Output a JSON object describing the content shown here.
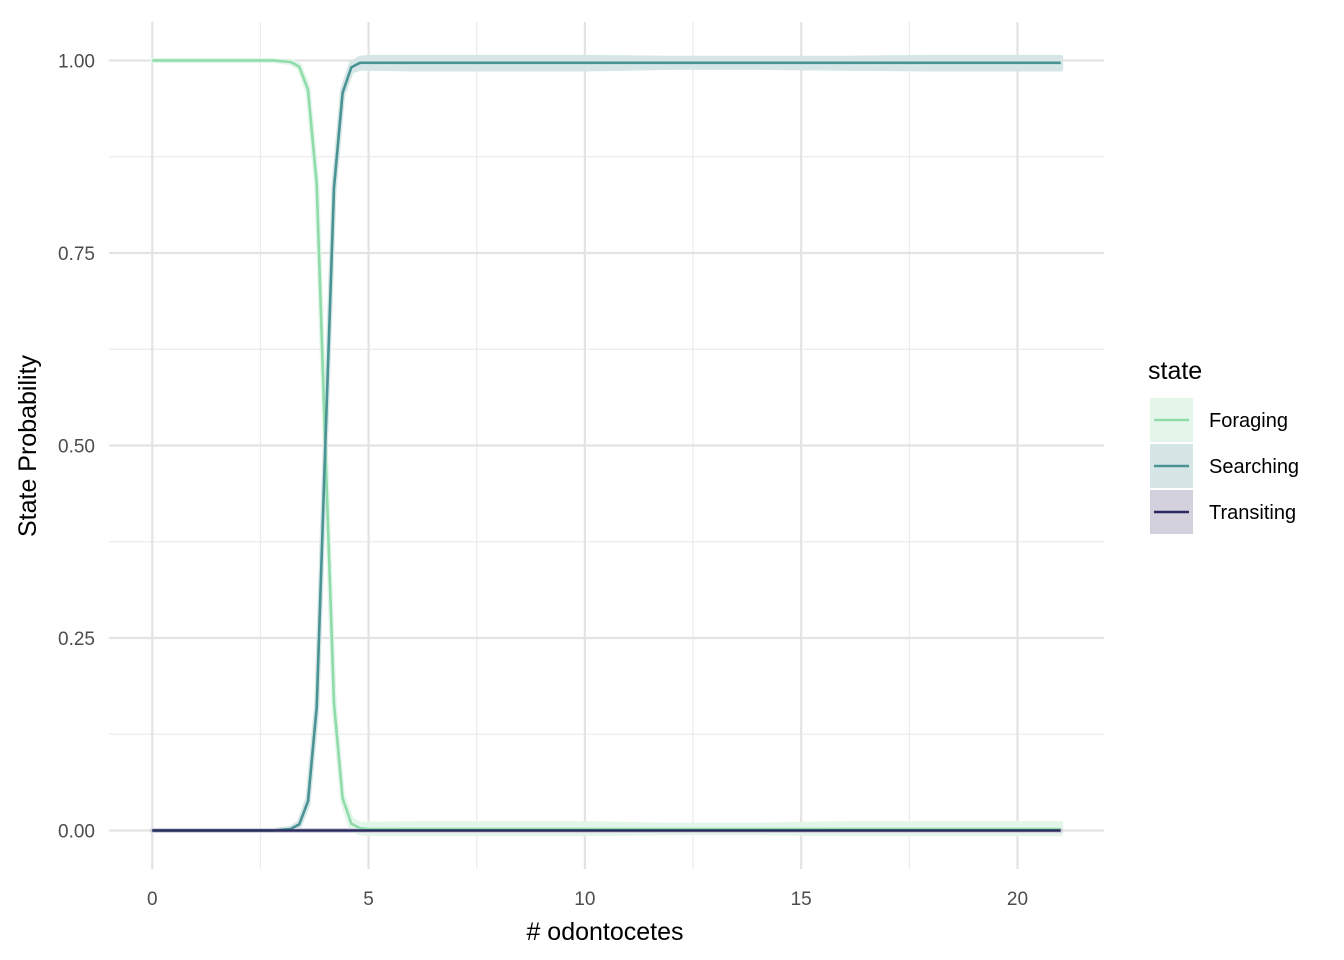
{
  "chart_data": {
    "type": "line",
    "xlabel": "# odontocetes",
    "ylabel": "State Probability",
    "xlim": [
      -1,
      22
    ],
    "ylim": [
      -0.05,
      1.05
    ],
    "x_ticks": [
      0,
      5,
      10,
      15,
      20
    ],
    "x_tick_labels": [
      "0",
      "5",
      "10",
      "15",
      "20"
    ],
    "y_ticks": [
      0,
      0.25,
      0.5,
      0.75,
      1
    ],
    "y_tick_labels": [
      "0.00",
      "0.25",
      "0.50",
      "0.75",
      "1.00"
    ],
    "grid": true,
    "legend": {
      "title": "state",
      "position": "right"
    },
    "series": [
      {
        "name": "Foraging",
        "color": "#8fdcaa",
        "ribbon_color": "#e4f6ea",
        "x": [
          0,
          1,
          2,
          2.8,
          3.2,
          3.4,
          3.6,
          3.8,
          4.0,
          4.2,
          4.4,
          4.6,
          4.8,
          5,
          6,
          8,
          10,
          12,
          14,
          16,
          18,
          21
        ],
        "values": [
          1.0,
          1.0,
          1.0,
          1.0,
          0.998,
          0.992,
          0.962,
          0.84,
          0.5,
          0.165,
          0.042,
          0.009,
          0.003,
          0.002,
          0.002,
          0.002,
          0.002,
          0.002,
          0.002,
          0.002,
          0.002,
          0.002
        ],
        "lower": [
          1.0,
          1.0,
          1.0,
          1.0,
          0.997,
          0.99,
          0.958,
          0.835,
          0.495,
          0.16,
          0.038,
          0.003,
          -0.003,
          -0.004,
          -0.004,
          -0.004,
          -0.004,
          -0.003,
          -0.003,
          -0.004,
          -0.004,
          -0.004
        ],
        "upper": [
          1.0,
          1.0,
          1.0,
          1.0,
          0.999,
          0.994,
          0.966,
          0.845,
          0.505,
          0.17,
          0.046,
          0.014,
          0.008,
          0.008,
          0.009,
          0.009,
          0.009,
          0.007,
          0.007,
          0.009,
          0.009,
          0.009
        ]
      },
      {
        "name": "Searching",
        "color": "#4a9394",
        "ribbon_color": "#d6e6e6",
        "x": [
          0,
          1,
          2,
          2.8,
          3.2,
          3.4,
          3.6,
          3.8,
          4.0,
          4.2,
          4.4,
          4.6,
          4.8,
          5,
          6,
          8,
          10,
          12,
          14,
          16,
          18,
          21
        ],
        "values": [
          0.0,
          0.0,
          0.0,
          0.0,
          0.002,
          0.008,
          0.038,
          0.16,
          0.5,
          0.835,
          0.958,
          0.991,
          0.997,
          0.997,
          0.997,
          0.997,
          0.997,
          0.997,
          0.997,
          0.997,
          0.997,
          0.997
        ],
        "lower": [
          0.0,
          0.0,
          0.0,
          0.0,
          0.001,
          0.006,
          0.034,
          0.155,
          0.495,
          0.83,
          0.954,
          0.986,
          0.99,
          0.99,
          0.989,
          0.989,
          0.989,
          0.991,
          0.991,
          0.99,
          0.989,
          0.989
        ],
        "upper": [
          0.0,
          0.0,
          0.0,
          0.0,
          0.003,
          0.01,
          0.042,
          0.165,
          0.505,
          0.84,
          0.962,
          0.996,
          1.003,
          1.004,
          1.004,
          1.004,
          1.004,
          1.003,
          1.003,
          1.003,
          1.004,
          1.004
        ]
      },
      {
        "name": "Transiting",
        "color": "#2a2a5e",
        "ribbon_color": "#d3d1de",
        "x": [
          0,
          3,
          5,
          10,
          15,
          21
        ],
        "values": [
          0.0,
          0.0,
          0.0,
          0.0,
          0.0,
          0.0
        ],
        "lower": [
          0.0,
          0.0,
          0.0,
          0.0,
          0.0,
          0.0
        ],
        "upper": [
          0.0,
          0.0,
          0.0,
          0.0,
          0.0,
          0.0
        ]
      }
    ]
  }
}
